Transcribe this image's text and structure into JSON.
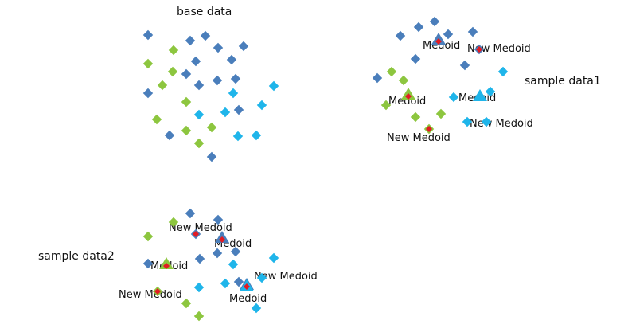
{
  "colors": {
    "cluster_dark_blue": "#4A7EBB",
    "cluster_green": "#8DC63F",
    "cluster_cyan": "#1FB5EA",
    "medoid_marker": "#E31B23"
  },
  "panels": [
    {
      "id": "base",
      "title": "base data",
      "medoid_label": "",
      "new_medoid_label": ""
    },
    {
      "id": "sample1",
      "title": "sample data1",
      "medoid_label": "Medoid",
      "new_medoid_label": "New Medoid"
    },
    {
      "id": "sample2",
      "title": "sample data2",
      "medoid_label": "Medoid",
      "new_medoid_label": "New Medoid"
    }
  ]
}
